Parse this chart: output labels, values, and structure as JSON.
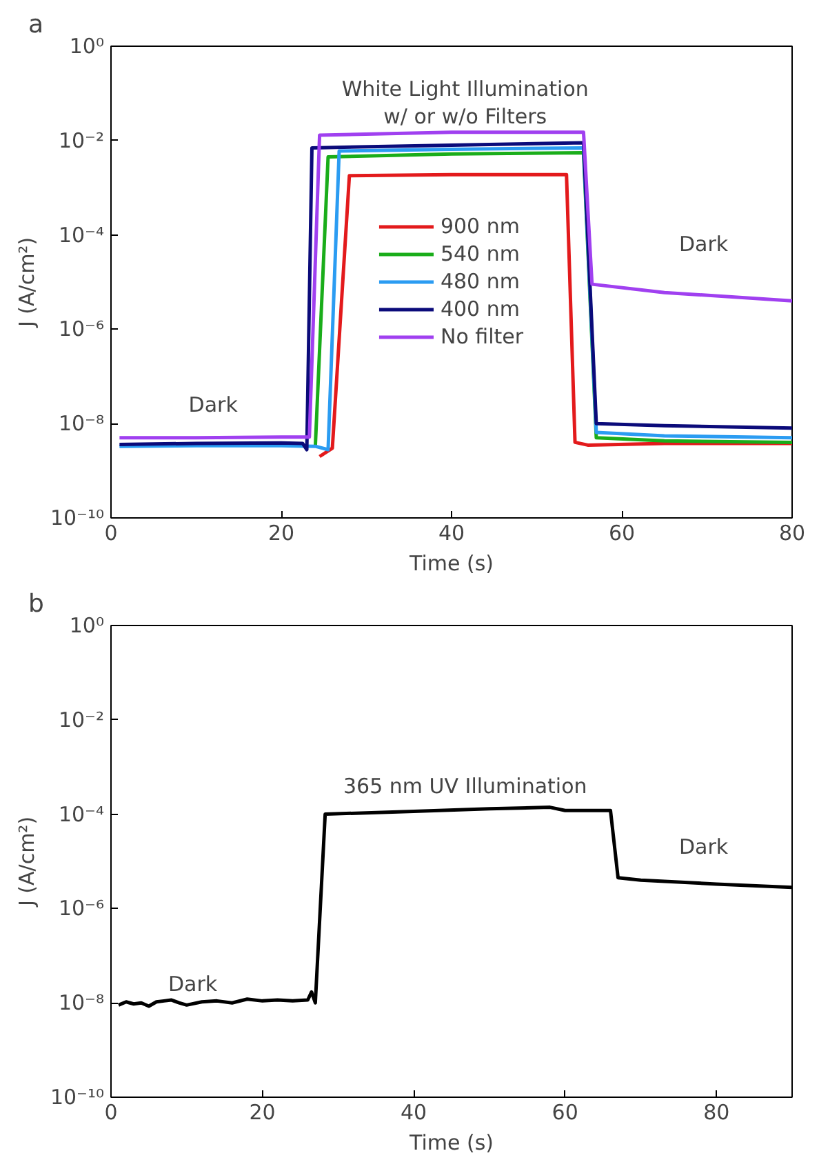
{
  "chart_data": [
    {
      "type": "line",
      "title": "a",
      "xlabel": "Time (s)",
      "ylabel": "J (A/cm²)",
      "log": "y",
      "xlim": [
        0,
        80
      ],
      "xticks": [
        0,
        20,
        40,
        60,
        80
      ],
      "ylim": [
        1e-10,
        1
      ],
      "yticks": [
        {
          "value": 1e-10,
          "label": "10⁻¹⁰"
        },
        {
          "value": 1e-08,
          "label": "10⁻⁸"
        },
        {
          "value": 1e-06,
          "label": "10⁻⁶"
        },
        {
          "value": 0.0001,
          "label": "10⁻⁴"
        },
        {
          "value": 0.01,
          "label": "10⁻²"
        },
        {
          "value": 1,
          "label": "10⁰"
        }
      ],
      "legend": "center",
      "grid": false,
      "annotations": [
        "White Light Illumination\nw/ or w/o Filters",
        "Dark",
        "Dark"
      ],
      "series": [
        {
          "name": "900 nm",
          "color": "#e31a1c",
          "x": [
            24.5,
            26,
            28,
            40,
            53.5,
            54.5,
            56,
            65,
            80
          ],
          "values": [
            2e-09,
            3e-09,
            0.0018,
            0.0019,
            0.0019,
            4e-09,
            3.5e-09,
            3.8e-09,
            3.8e-09
          ]
        },
        {
          "name": "540 nm",
          "color": "#1aad1a",
          "x": [
            24,
            25.5,
            40,
            55.5,
            57,
            65,
            80
          ],
          "values": [
            3.3e-09,
            0.0045,
            0.0052,
            0.0055,
            5e-09,
            4.3e-09,
            4e-09
          ]
        },
        {
          "name": "480 nm",
          "color": "#2b9cf2",
          "x": [
            1,
            10,
            20,
            24,
            25.5,
            26.8,
            40,
            55.5,
            57,
            65,
            80
          ],
          "values": [
            3.3e-09,
            3.4e-09,
            3.4e-09,
            3.3e-09,
            2.8e-09,
            0.006,
            0.0065,
            0.007,
            6.5e-09,
            5.5e-09,
            5e-09
          ]
        },
        {
          "name": "400 nm",
          "color": "#0b0b7a",
          "x": [
            1,
            10,
            20,
            22.5,
            23,
            23.6,
            40,
            55.5,
            57,
            65,
            80
          ],
          "values": [
            3.6e-09,
            3.8e-09,
            3.9e-09,
            3.8e-09,
            2.8e-09,
            0.007,
            0.008,
            0.009,
            1e-08,
            9e-09,
            8e-09
          ]
        },
        {
          "name": "No filter",
          "color": "#a040f0",
          "x": [
            1,
            10,
            20,
            23.3,
            24.5,
            40,
            55.5,
            56.5,
            65,
            80
          ],
          "values": [
            5e-09,
            5e-09,
            5.2e-09,
            5.2e-09,
            0.013,
            0.015,
            0.015,
            9e-06,
            6e-06,
            4e-06
          ]
        }
      ]
    },
    {
      "type": "line",
      "title": "b",
      "xlabel": "Time (s)",
      "ylabel": "J (A/cm²)",
      "log": "y",
      "xlim": [
        0,
        90
      ],
      "xticks": [
        0,
        20,
        40,
        60,
        80
      ],
      "ylim": [
        1e-10,
        1
      ],
      "yticks": [
        {
          "value": 1e-10,
          "label": "10⁻¹⁰"
        },
        {
          "value": 1e-08,
          "label": "10⁻⁸"
        },
        {
          "value": 1e-06,
          "label": "10⁻⁶"
        },
        {
          "value": 0.0001,
          "label": "10⁻⁴"
        },
        {
          "value": 0.01,
          "label": "10⁻²"
        },
        {
          "value": 1,
          "label": "10⁰"
        }
      ],
      "legend": false,
      "grid": false,
      "annotations": [
        "365 nm UV Illumination",
        "Dark",
        "Dark"
      ],
      "series": [
        {
          "color": "#000000",
          "x": [
            1,
            2,
            3,
            4,
            5,
            6,
            7,
            8,
            9,
            10,
            12,
            14,
            16,
            18,
            20,
            22,
            24,
            26,
            26.5,
            27,
            28.3,
            40,
            50,
            58,
            60,
            66,
            67,
            70,
            80,
            90
          ],
          "values": [
            9e-09,
            1.05e-08,
            9.5e-09,
            1e-08,
            8.5e-09,
            1.05e-08,
            1.1e-08,
            1.15e-08,
            1e-08,
            9e-09,
            1.05e-08,
            1.1e-08,
            1e-08,
            1.2e-08,
            1.1e-08,
            1.15e-08,
            1.1e-08,
            1.15e-08,
            1.7e-08,
            1e-08,
            0.0001,
            0.000115,
            0.00013,
            0.00014,
            0.00012,
            0.00012,
            4.5e-06,
            4e-06,
            3.3e-06,
            2.8e-06
          ]
        }
      ]
    }
  ]
}
